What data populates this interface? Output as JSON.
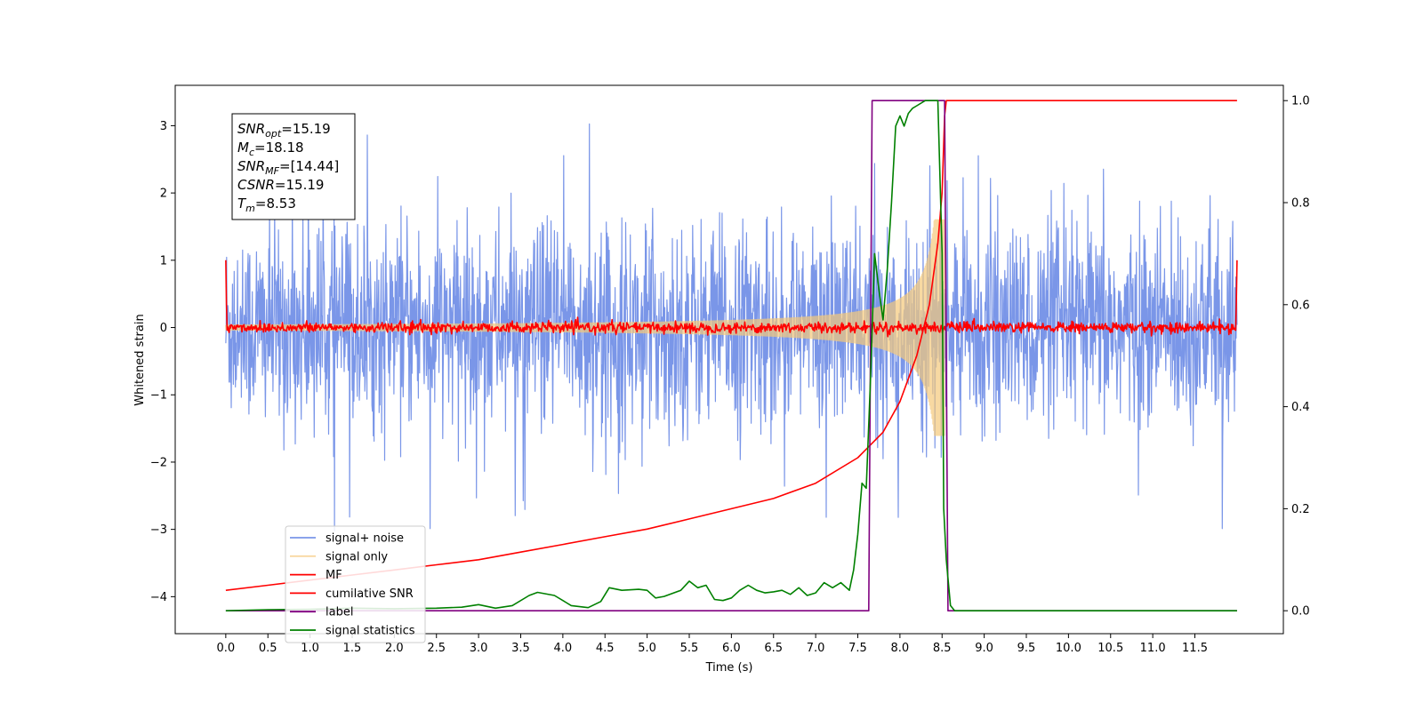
{
  "chart_data": {
    "type": "line",
    "title": "",
    "xlabel": "Time (s)",
    "ylabel": "Whitened strain",
    "xlim": [
      -0.6,
      12.55
    ],
    "ylim": [
      -4.55,
      3.6
    ],
    "y2lim": [
      -0.045,
      1.03
    ],
    "grid": false,
    "legend_position": "lower-left",
    "x_ticks": [
      0.0,
      0.5,
      1.0,
      1.5,
      2.0,
      2.5,
      3.0,
      3.5,
      4.0,
      4.5,
      5.0,
      5.5,
      6.0,
      6.5,
      7.0,
      7.5,
      8.0,
      8.5,
      9.0,
      9.5,
      10.0,
      10.5,
      11.0,
      11.5
    ],
    "x_tick_labels": [
      "0.0",
      "0.5",
      "1.0",
      "1.5",
      "2.0",
      "2.5",
      "3.0",
      "3.5",
      "4.0",
      "4.5",
      "5.0",
      "5.5",
      "6.0",
      "6.5",
      "7.0",
      "7.5",
      "8.0",
      "8.5",
      "9.0",
      "9.5",
      "10.0",
      "10.5",
      "11.0",
      "11.5"
    ],
    "y_ticks": [
      -4,
      -3,
      -2,
      -1,
      0,
      1,
      2,
      3
    ],
    "y_tick_labels": [
      "−4",
      "−3",
      "−2",
      "−1",
      "0",
      "1",
      "2",
      "3"
    ],
    "y2_ticks": [
      0.0,
      0.2,
      0.4,
      0.6,
      0.8,
      1.0
    ],
    "y2_tick_labels": [
      "0.0",
      "0.2",
      "0.4",
      "0.6",
      "0.8",
      "1.0"
    ],
    "annotations": [
      {
        "base": "SNR",
        "sub": "opt",
        "rest": "=15.19"
      },
      {
        "base": "M",
        "sub": "c",
        "rest": "=18.18"
      },
      {
        "base": "SNR",
        "sub": "MF",
        "rest": "=[14.44]"
      },
      {
        "base": "CSNR",
        "sub": "",
        "rest": "=15.19"
      },
      {
        "base": "T",
        "sub": "m",
        "rest": "=8.53"
      }
    ],
    "series": [
      {
        "name": "signal+ noise",
        "axis": "left",
        "color": "#7a96e8",
        "kind": "noise",
        "x_range": [
          0.0,
          12.0
        ],
        "std": 0.75,
        "spikes": [
          -3.1,
          3.3
        ]
      },
      {
        "name": "signal only",
        "axis": "left",
        "color": "#f5c97a",
        "kind": "chirp",
        "x_range": [
          0.0,
          8.53
        ],
        "peak": 1.6
      },
      {
        "name": "MF",
        "axis": "left",
        "color": "#ff0000",
        "kind": "noise",
        "x_range": [
          0.0,
          12.0
        ],
        "std": 0.04,
        "edges": [
          1.0,
          1.0
        ]
      },
      {
        "name": "cumilative SNR",
        "axis": "right",
        "color": "#ff0000",
        "x": [
          0.0,
          0.5,
          1.0,
          1.5,
          2.0,
          2.5,
          3.0,
          3.5,
          4.0,
          4.5,
          5.0,
          5.5,
          6.0,
          6.5,
          7.0,
          7.5,
          7.8,
          8.0,
          8.2,
          8.35,
          8.45,
          8.5,
          8.53,
          8.55,
          12.0
        ],
        "y": [
          0.04,
          0.05,
          0.06,
          0.07,
          0.08,
          0.09,
          0.1,
          0.115,
          0.13,
          0.145,
          0.16,
          0.18,
          0.2,
          0.22,
          0.25,
          0.3,
          0.35,
          0.41,
          0.5,
          0.6,
          0.72,
          0.82,
          0.97,
          1.0,
          1.0
        ]
      },
      {
        "name": "label",
        "axis": "right",
        "color": "#800080",
        "x": [
          0.0,
          7.63,
          7.67,
          8.53,
          8.57,
          12.0
        ],
        "y": [
          0.0,
          0.0,
          1.0,
          1.0,
          0.0,
          0.0
        ]
      },
      {
        "name": "signal statistics",
        "axis": "right",
        "color": "#008000",
        "x": [
          0.0,
          0.5,
          1.0,
          1.5,
          2.0,
          2.5,
          2.8,
          3.0,
          3.2,
          3.4,
          3.6,
          3.7,
          3.9,
          4.1,
          4.3,
          4.45,
          4.55,
          4.7,
          4.9,
          5.0,
          5.1,
          5.2,
          5.4,
          5.5,
          5.6,
          5.7,
          5.8,
          5.9,
          6.0,
          6.1,
          6.2,
          6.3,
          6.4,
          6.5,
          6.6,
          6.7,
          6.8,
          6.9,
          7.0,
          7.1,
          7.2,
          7.3,
          7.4,
          7.45,
          7.5,
          7.55,
          7.6,
          7.65,
          7.7,
          7.75,
          7.8,
          7.85,
          7.9,
          7.95,
          8.0,
          8.05,
          8.1,
          8.15,
          8.2,
          8.3,
          8.4,
          8.45,
          8.5,
          8.52,
          8.55,
          8.6,
          8.65,
          9.0,
          9.5,
          12.0
        ],
        "y": [
          0.0,
          0.002,
          0.003,
          0.005,
          0.004,
          0.005,
          0.007,
          0.012,
          0.005,
          0.01,
          0.03,
          0.036,
          0.03,
          0.01,
          0.006,
          0.018,
          0.045,
          0.04,
          0.042,
          0.04,
          0.025,
          0.028,
          0.04,
          0.058,
          0.045,
          0.05,
          0.022,
          0.02,
          0.025,
          0.04,
          0.05,
          0.04,
          0.035,
          0.037,
          0.04,
          0.032,
          0.045,
          0.03,
          0.035,
          0.055,
          0.045,
          0.055,
          0.04,
          0.08,
          0.15,
          0.25,
          0.24,
          0.45,
          0.7,
          0.63,
          0.57,
          0.67,
          0.8,
          0.95,
          0.97,
          0.95,
          0.975,
          0.985,
          0.99,
          1.0,
          1.0,
          1.0,
          0.7,
          0.2,
          0.1,
          0.01,
          0.0,
          0.0,
          0.0,
          0.0
        ]
      }
    ]
  }
}
